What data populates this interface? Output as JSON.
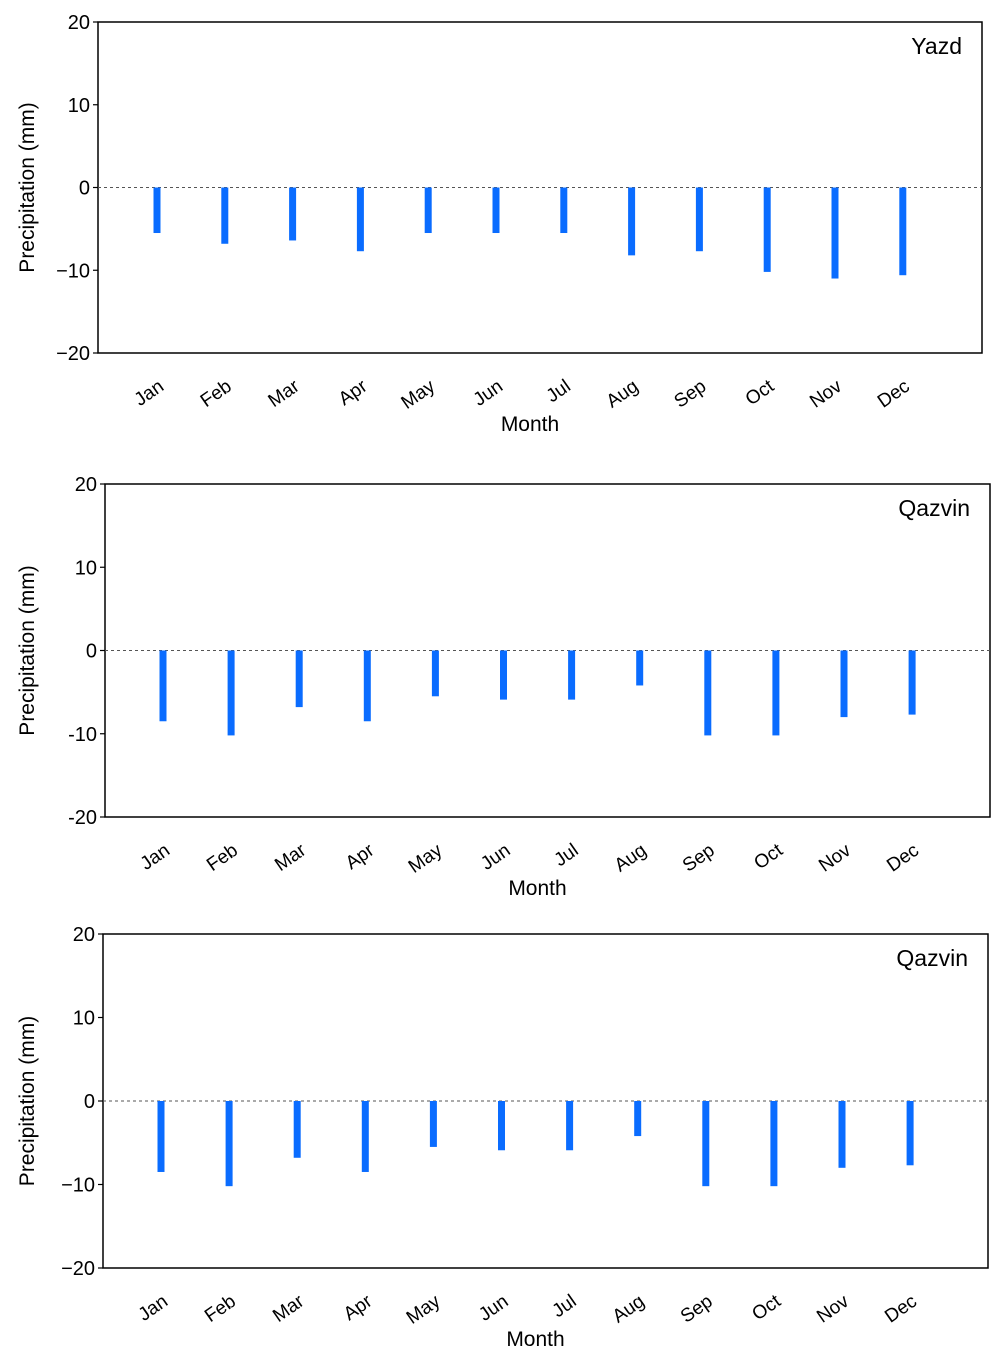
{
  "colors": {
    "bar": "#0a6cff",
    "frame": "#000000",
    "zero_line": "#555555"
  },
  "chart_data": [
    {
      "type": "bar",
      "title": "Yazd",
      "xlabel": "Month",
      "ylabel": "Precipitation (mm)",
      "ylim": [
        -20,
        20
      ],
      "yticks": [
        20,
        10,
        0,
        -10,
        -20
      ],
      "ytick_labels": [
        "20",
        "10",
        "0",
        "−10",
        "−20"
      ],
      "categories": [
        "Jan",
        "Feb",
        "Mar",
        "Apr",
        "May",
        "Jun",
        "Jul",
        "Aug",
        "Sep",
        "Oct",
        "Nov",
        "Dec"
      ],
      "values": [
        -5.5,
        -6.8,
        -6.4,
        -7.7,
        -5.5,
        -5.5,
        -5.5,
        -8.2,
        -7.7,
        -10.2,
        -11.0,
        -10.6
      ],
      "zero_line": "dashed",
      "grid": false
    },
    {
      "type": "bar",
      "title": "Qazvin",
      "xlabel": "Month",
      "ylabel": "Precipitation (mm)",
      "ylim": [
        -20,
        20
      ],
      "yticks": [
        20,
        10,
        0,
        -10,
        -20
      ],
      "ytick_labels": [
        "20",
        "10",
        "0",
        "-10",
        "-20"
      ],
      "categories": [
        "Jan",
        "Feb",
        "Mar",
        "Apr",
        "May",
        "Jun",
        "Jul",
        "Aug",
        "Sep",
        "Oct",
        "Nov",
        "Dec"
      ],
      "values": [
        -8.5,
        -10.2,
        -6.8,
        -8.5,
        -5.5,
        -5.9,
        -5.9,
        -4.2,
        -10.2,
        -10.2,
        -8.0,
        -7.7
      ],
      "zero_line": "dashed",
      "grid": false
    },
    {
      "type": "bar",
      "title": "Qazvin",
      "xlabel": "Month",
      "ylabel": "Precipitation (mm)",
      "ylim": [
        -20,
        20
      ],
      "yticks": [
        20,
        10,
        0,
        -10,
        -20
      ],
      "ytick_labels": [
        "20",
        "10",
        "0",
        "−10",
        "−20"
      ],
      "categories": [
        "Jan",
        "Feb",
        "Mar",
        "Apr",
        "May",
        "Jun",
        "Jul",
        "Aug",
        "Sep",
        "Oct",
        "Nov",
        "Dec"
      ],
      "values": [
        -8.5,
        -10.2,
        -6.8,
        -8.5,
        -5.5,
        -5.9,
        -5.9,
        -4.2,
        -10.2,
        -10.2,
        -8.0,
        -7.7
      ],
      "zero_line": "dashed",
      "grid": false
    }
  ]
}
